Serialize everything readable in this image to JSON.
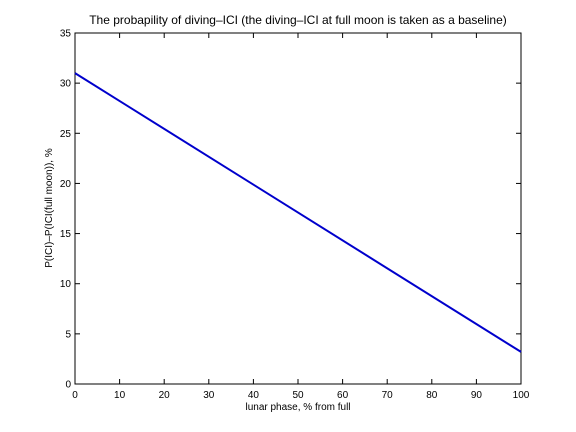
{
  "chart_data": {
    "type": "line",
    "title": "The probapility of diving–ICI (the diving–ICI at full moon is taken as a baseline)",
    "xlabel": "lunar phase, % from full",
    "ylabel": "P(ICI)–P(ICI(full moon)), %",
    "xlim": [
      0,
      100
    ],
    "ylim": [
      0,
      35
    ],
    "xticks": [
      0,
      10,
      20,
      30,
      40,
      50,
      60,
      70,
      80,
      90,
      100
    ],
    "yticks": [
      0,
      5,
      10,
      15,
      20,
      25,
      30,
      35
    ],
    "grid": false,
    "series": [
      {
        "x": [
          0,
          100
        ],
        "values": [
          31.0,
          3.2
        ],
        "color": "#0000cc"
      }
    ]
  }
}
